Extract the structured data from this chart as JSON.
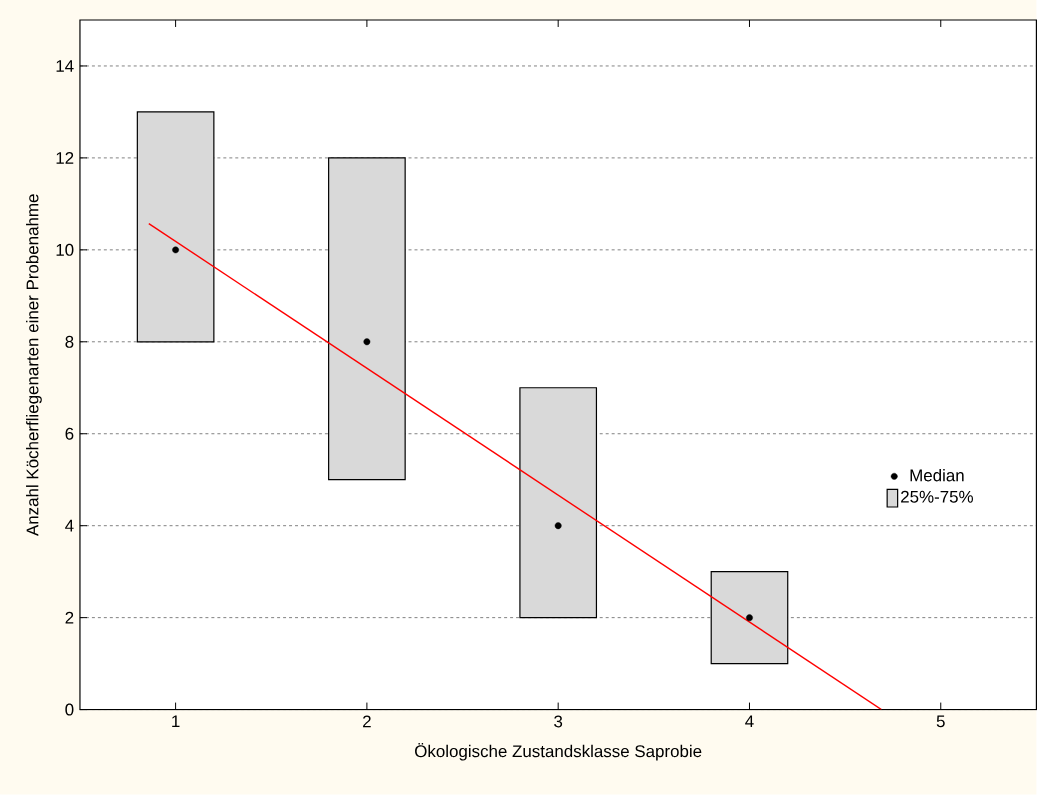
{
  "chart_data": {
    "type": "bar",
    "xlabel": "Ökologische Zustandsklasse Saprobie",
    "ylabel": "Anzahl Köcherfliegenarten einer Probenahme",
    "xlim": [
      0.5,
      5.5
    ],
    "xticks": [
      1,
      2,
      3,
      4,
      5
    ],
    "ylim": [
      0,
      15
    ],
    "yticks": [
      0,
      2,
      4,
      6,
      8,
      10,
      12,
      14
    ],
    "grid": "y",
    "legend": "right",
    "series": [
      {
        "name": "Median",
        "type": "scatter",
        "marker": "circle",
        "color": "#000000",
        "x": [
          1,
          2,
          3,
          4
        ],
        "values": [
          10,
          8,
          4,
          2
        ]
      },
      {
        "name": "25%-75%",
        "color": "#d9d9d9",
        "x": [
          1,
          2,
          3,
          4
        ],
        "base": [
          8,
          5,
          2,
          1
        ],
        "values": [
          5,
          7,
          5,
          2
        ]
      },
      {
        "type": "line",
        "marker": "none",
        "color": "#ff0000",
        "x": [
          0.86,
          4.69
        ],
        "values": [
          10.57,
          0
        ]
      }
    ]
  }
}
